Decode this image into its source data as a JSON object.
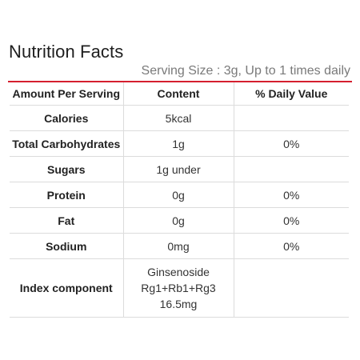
{
  "title": "Nutrition Facts",
  "serving": "Serving Size : 3g, Up to 1 times daily",
  "accent_color": "#d51f2f",
  "headers": {
    "amount": "Amount Per Serving",
    "content": "Content",
    "dv": "% Daily Value"
  },
  "rows": [
    {
      "label": "Calories",
      "content": "5kcal",
      "dv": ""
    },
    {
      "label": "Total Carbohydrates",
      "content": "1g",
      "dv": "0%"
    },
    {
      "label": "Sugars",
      "content": "1g under",
      "dv": ""
    },
    {
      "label": "Protein",
      "content": "0g",
      "dv": "0%"
    },
    {
      "label": "Fat",
      "content": "0g",
      "dv": "0%"
    },
    {
      "label": "Sodium",
      "content": "0mg",
      "dv": "0%"
    }
  ],
  "index_component": {
    "label": "Index component",
    "content_lines": [
      "Ginsenoside",
      "Rg1+Rb1+Rg3",
      "16.5mg"
    ],
    "dv": ""
  }
}
